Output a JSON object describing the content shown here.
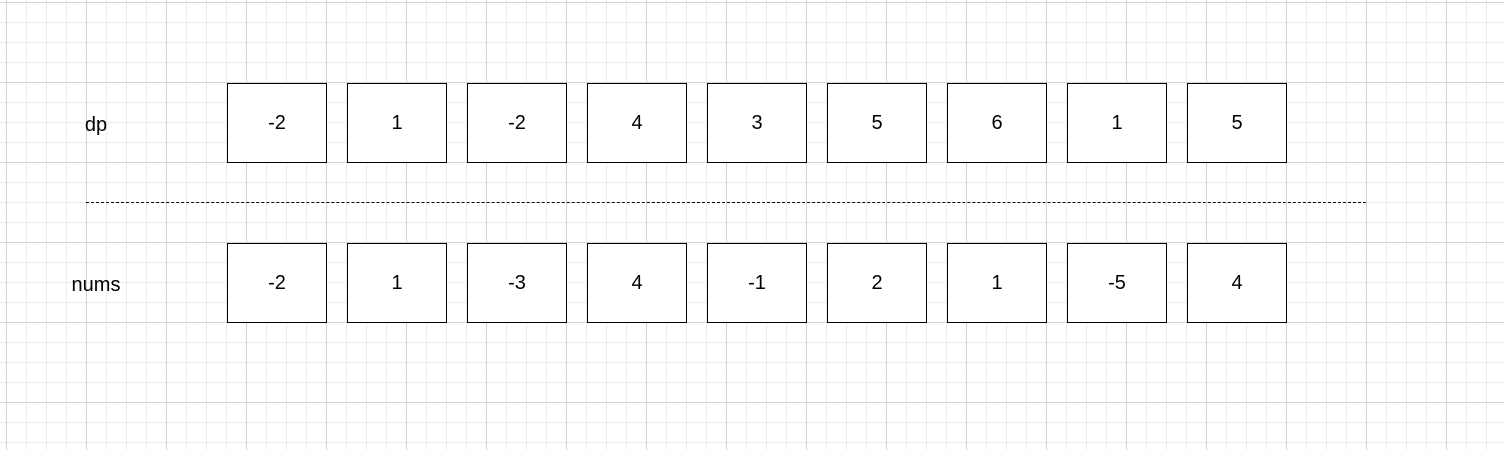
{
  "rows": {
    "dp": {
      "label": "dp",
      "values": [
        "-2",
        "1",
        "-2",
        "4",
        "3",
        "5",
        "6",
        "1",
        "5"
      ]
    },
    "nums": {
      "label": "nums",
      "values": [
        "-2",
        "1",
        "-3",
        "4",
        "-1",
        "2",
        "1",
        "-5",
        "4"
      ]
    }
  }
}
